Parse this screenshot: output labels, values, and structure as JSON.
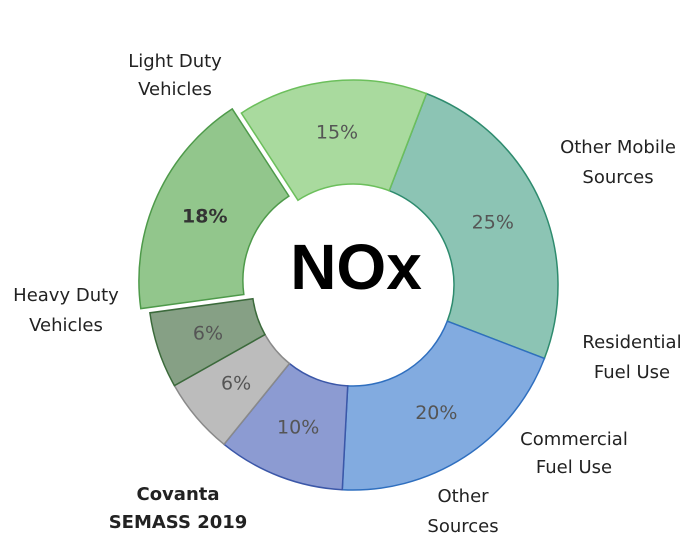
{
  "chart_data": {
    "type": "donut",
    "center_label": "NOx",
    "categories": [
      [
        "Light Duty",
        "Vehicles"
      ],
      [
        "Other Mobile",
        "Sources"
      ],
      [
        "Residential",
        "Fuel Use"
      ],
      [
        "Commercial",
        "Fuel Use"
      ],
      [
        "Other",
        "Sources"
      ],
      [
        "Covanta",
        "SEMASS 2019"
      ],
      [
        "Heavy Duty",
        "Vehicles"
      ]
    ],
    "values": [
      25,
      20,
      10,
      6,
      6,
      18,
      15
    ],
    "value_labels": [
      "25%",
      "20%",
      "10%",
      "6%",
      "6%",
      "18%",
      "15%"
    ],
    "colors": [
      "#8cc4b4",
      "#82abe0",
      "#8c9bd2",
      "#bcbcbc",
      "#86a085",
      "#92c68c",
      "#a9da9e"
    ],
    "stroke_colors": [
      "#2e8b6e",
      "#2f6fbf",
      "#3b57a8",
      "#8a8a8a",
      "#3b6a3b",
      "#4e9a4a",
      "#6cbf5c"
    ],
    "highlight": 5
  }
}
